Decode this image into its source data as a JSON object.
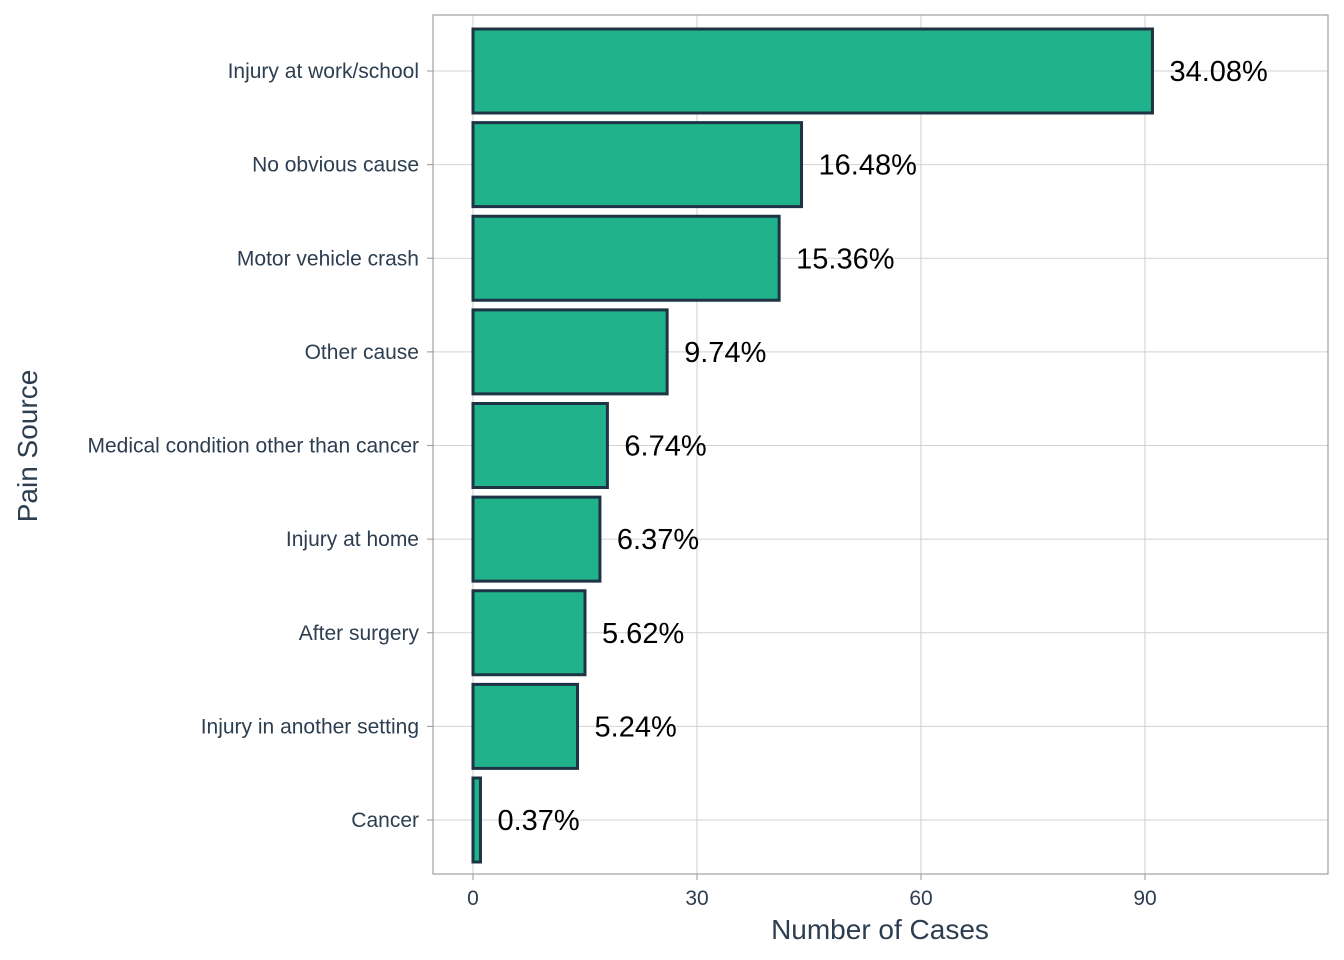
{
  "chart_data": {
    "type": "bar",
    "orientation": "horizontal",
    "categories": [
      "Injury at work/school",
      "No obvious cause",
      "Motor vehicle crash",
      "Other cause",
      "Medical condition other than cancer",
      "Injury at home",
      "After surgery",
      "Injury in another setting",
      "Cancer"
    ],
    "values": [
      91,
      44,
      41,
      26,
      18,
      17,
      15,
      14,
      1
    ],
    "data_labels": [
      "34.08%",
      "16.48%",
      "15.36%",
      "9.74%",
      "6.74%",
      "6.37%",
      "5.62%",
      "5.24%",
      "0.37%"
    ],
    "xlabel": "Number of Cases",
    "ylabel": "Pain Source",
    "xticks": [
      0,
      30,
      60,
      90
    ],
    "xtick_labels": [
      "0",
      "30",
      "60",
      "90"
    ],
    "xlim": [
      -5.3,
      114.8
    ],
    "grid": true,
    "legend": "none",
    "colors": {
      "bar_fill": "#20b28a",
      "bar_stroke": "#1e3344",
      "text": "#2c3e50",
      "grid": "#d3d3d3"
    }
  }
}
